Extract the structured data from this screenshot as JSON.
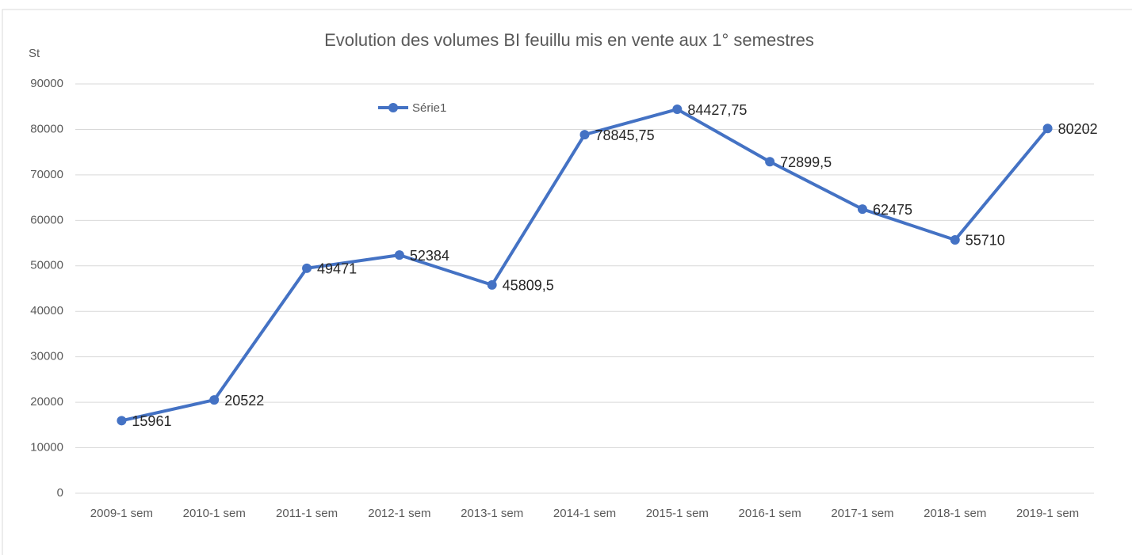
{
  "chart_data": {
    "type": "line",
    "title": "Evolution des volumes BI feuillu mis en vente aux  1° semestres",
    "y_label": "St",
    "categories": [
      "2009-1 sem",
      "2010-1 sem",
      "2011-1 sem",
      "2012-1 sem",
      "2013-1 sem",
      "2014-1 sem",
      "2015-1 sem",
      "2016-1 sem",
      "2017-1 sem",
      "2018-1 sem",
      "2019-1 sem"
    ],
    "series": [
      {
        "name": "Série1",
        "color": "#4472c4",
        "values": [
          15961,
          20522,
          49471,
          52384,
          45809.5,
          78845.75,
          84427.75,
          72899.5,
          62475,
          55710,
          80202
        ],
        "value_labels": [
          "15961",
          "20522",
          "49471",
          "52384",
          "45809,5",
          "78845,75",
          "84427,75",
          "72899,5",
          "62475",
          "55710",
          "80202"
        ]
      }
    ],
    "ylim": [
      0,
      90000
    ],
    "yticks": [
      0,
      10000,
      20000,
      30000,
      40000,
      50000,
      60000,
      70000,
      80000,
      90000
    ],
    "grid": true,
    "legend": "top"
  }
}
